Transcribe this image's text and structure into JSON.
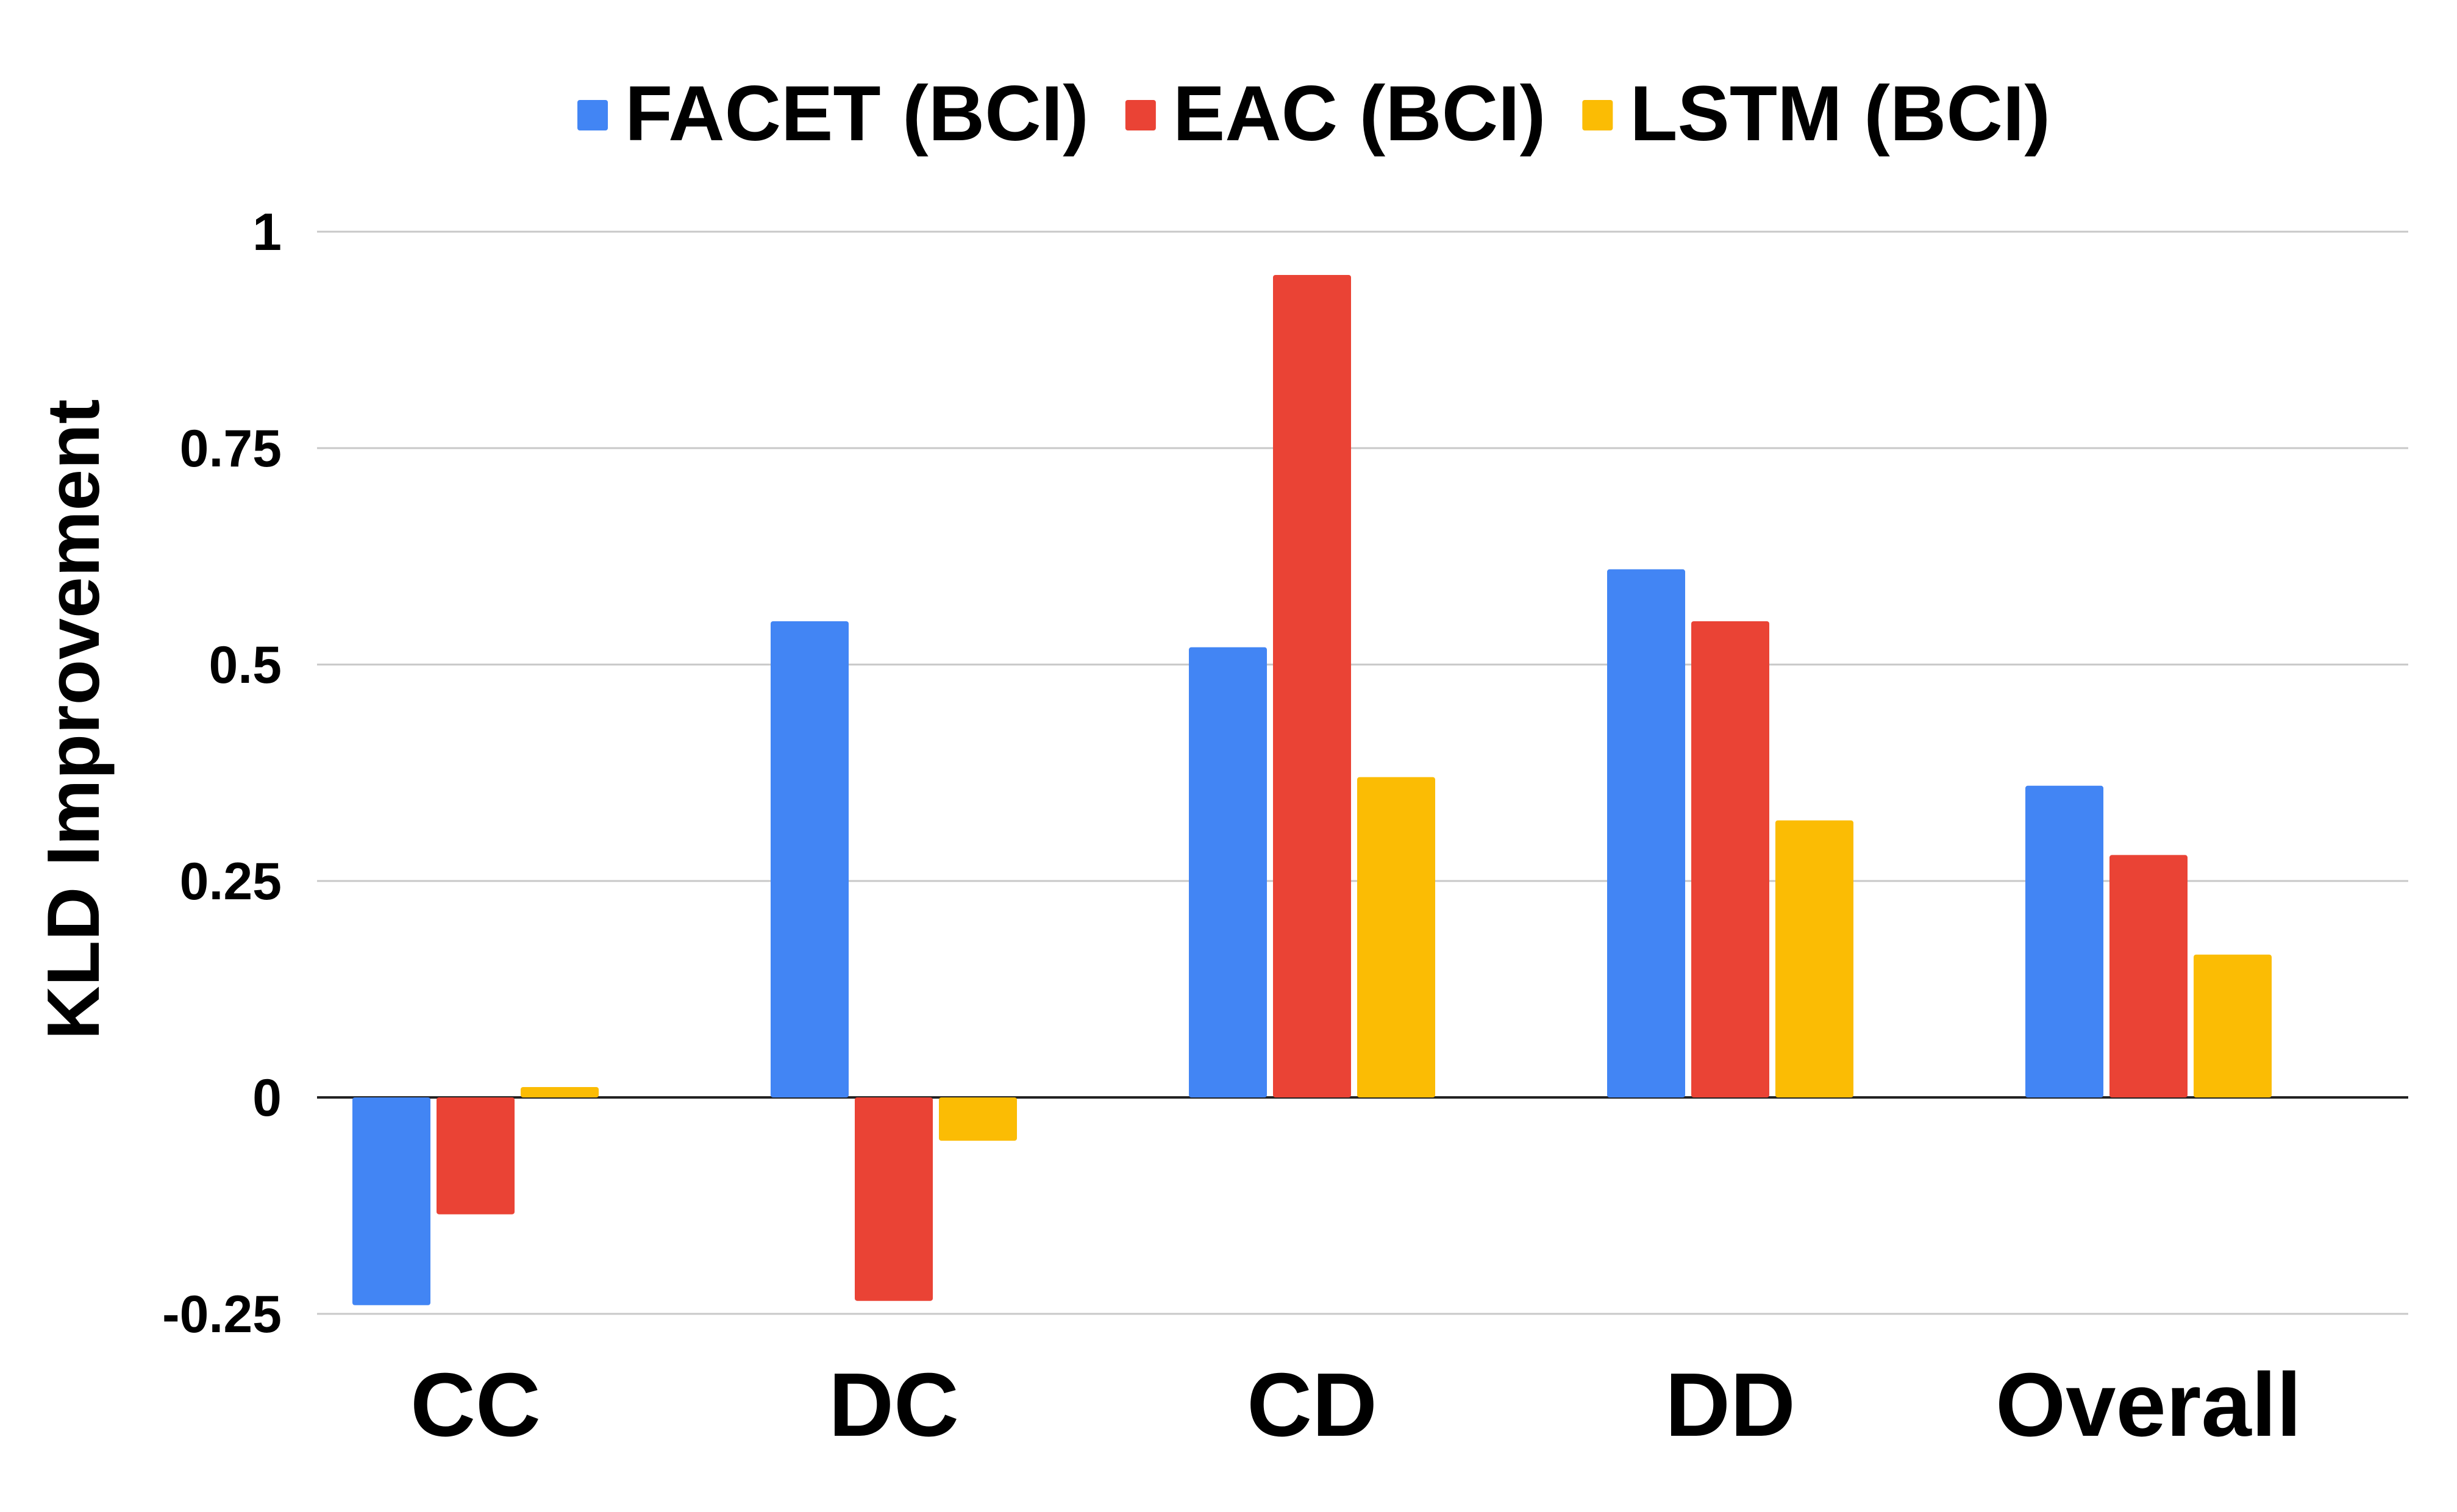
{
  "chart_data": {
    "type": "bar",
    "title": "",
    "xlabel": "",
    "ylabel": "KLD Improvement",
    "categories": [
      "CC",
      "DC",
      "CD",
      "DD",
      "Overall"
    ],
    "series": [
      {
        "name": "FACET (BCI)",
        "color": "#4285F4",
        "values": [
          -0.24,
          0.55,
          0.52,
          0.61,
          0.36
        ]
      },
      {
        "name": "EAC (BCI)",
        "color": "#EA4335",
        "values": [
          -0.135,
          -0.235,
          0.95,
          0.55,
          0.28
        ]
      },
      {
        "name": "LSTM (BCI)",
        "color": "#FBBC04",
        "values": [
          0.012,
          -0.05,
          0.37,
          0.32,
          0.165
        ]
      }
    ],
    "ylim": [
      -0.25,
      1
    ],
    "yticks": [
      {
        "value": -0.25,
        "label": "-0.25"
      },
      {
        "value": 0,
        "label": "0"
      },
      {
        "value": 0.25,
        "label": "0.25"
      },
      {
        "value": 0.5,
        "label": "0.5"
      },
      {
        "value": 0.75,
        "label": "0.75"
      },
      {
        "value": 1,
        "label": "1"
      }
    ],
    "grid": true,
    "legend_position": "top-center"
  }
}
